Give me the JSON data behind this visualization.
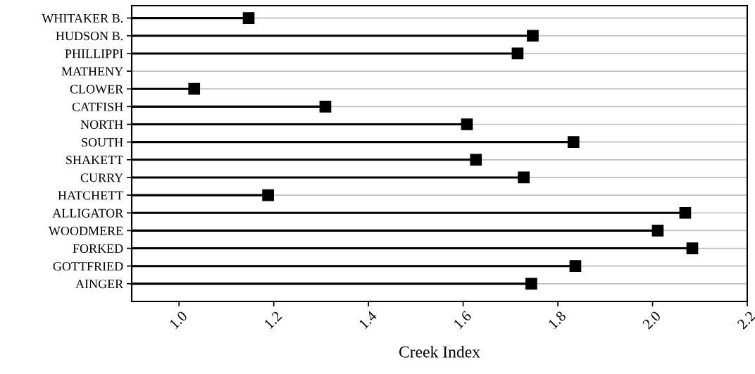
{
  "chart_data": {
    "type": "lollipop",
    "orientation": "horizontal",
    "xlabel": "Creek Index",
    "categories": [
      "WHITAKER B.",
      "HUDSON B.",
      "PHILLIPPI",
      "MATHENY",
      "CLOWER",
      "CATFISH",
      "NORTH",
      "SOUTH",
      "SHAKETT",
      "CURRY",
      "HATCHETT",
      "ALLIGATOR",
      "WOODMERE",
      "FORKED",
      "GOTTFRIED",
      "AINGER"
    ],
    "values": [
      1.147,
      1.747,
      1.715,
      null,
      1.032,
      1.309,
      1.608,
      1.833,
      1.627,
      1.728,
      1.188,
      2.069,
      2.011,
      2.084,
      1.837,
      1.744
    ],
    "color": "#000000",
    "marker": "square",
    "xlim": [
      0.9,
      2.2
    ],
    "xticks": [
      {
        "value": 1.0,
        "label": "1.0"
      },
      1.2,
      1.4,
      1.6,
      1.8,
      {
        "value": 2.0,
        "label": "2.0"
      },
      2.2
    ],
    "grid": "y"
  }
}
